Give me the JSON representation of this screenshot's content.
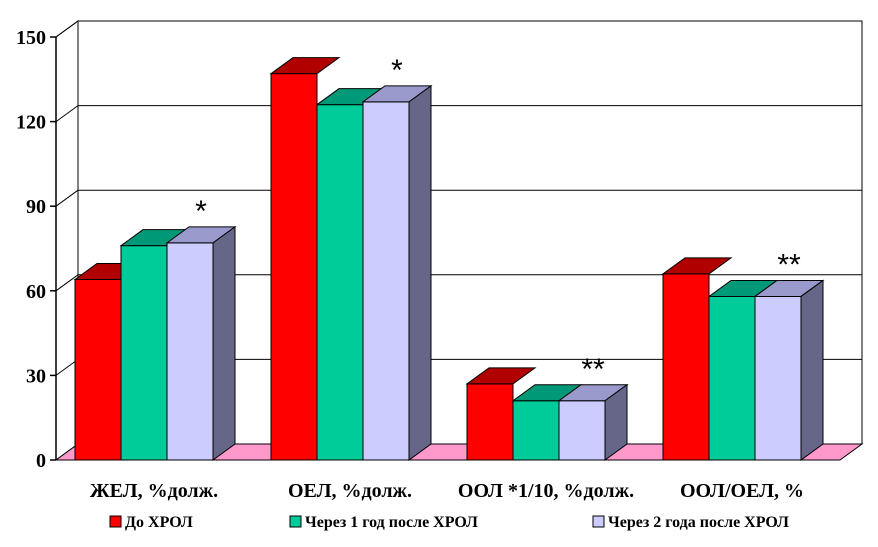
{
  "chart_data": {
    "type": "bar",
    "categories": [
      "ЖЕЛ, %долж.",
      "ОЕЛ, %долж.",
      "ООЛ *1/10, %долж.",
      "ООЛ/ОЕЛ, %"
    ],
    "series": [
      {
        "name": "До ХРОЛ",
        "values": [
          64,
          137,
          27,
          66
        ],
        "color": "#ff0000",
        "top_color": "#b00000",
        "side_color": "#800000"
      },
      {
        "name": "Через 1 год после ХРОЛ",
        "values": [
          76,
          126,
          21,
          58
        ],
        "color": "#00cc99",
        "top_color": "#009977",
        "side_color": "#006b55"
      },
      {
        "name": "Через 2 года после ХРОЛ",
        "values": [
          77,
          127,
          21,
          58
        ],
        "color": "#ccccff",
        "top_color": "#9999cc",
        "side_color": "#666688"
      }
    ],
    "annotations": [
      "*",
      "*",
      "**",
      "**"
    ],
    "yticks": [
      0,
      30,
      60,
      90,
      120,
      150
    ],
    "ylim": [
      0,
      150
    ],
    "grid": true,
    "legend_position": "bottom",
    "floor_color": "#ff99cc",
    "wall_color": "#ffffff"
  }
}
